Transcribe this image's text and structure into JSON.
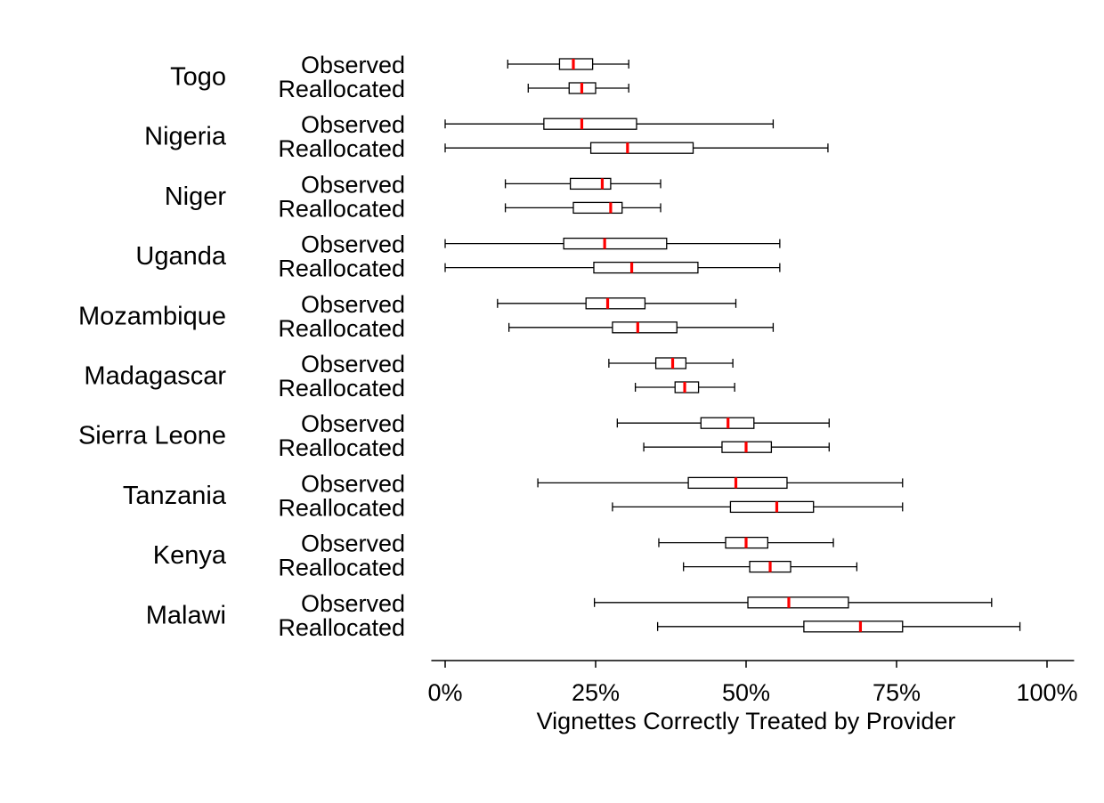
{
  "chart_data": {
    "type": "boxplot",
    "orientation": "horizontal",
    "xlabel": "Vignettes Correctly Treated by Provider",
    "xlim": [
      -0.023,
      1.045
    ],
    "x_ticks": [
      0,
      0.25,
      0.5,
      0.75,
      1.0
    ],
    "x_tick_labels": [
      "0%",
      "25%",
      "50%",
      "75%",
      "100%"
    ],
    "series_labels": [
      "Observed",
      "Reallocated"
    ],
    "median_color": "#ff0000",
    "box_color": "#000000",
    "grid": false,
    "legend": "none",
    "groups": [
      {
        "country": "Togo",
        "boxes": [
          {
            "series": "Observed",
            "whisker_low": 0.104,
            "q1": 0.19,
            "median": 0.213,
            "q3": 0.245,
            "whisker_high": 0.305
          },
          {
            "series": "Reallocated",
            "whisker_low": 0.138,
            "q1": 0.206,
            "median": 0.227,
            "q3": 0.25,
            "whisker_high": 0.305
          }
        ]
      },
      {
        "country": "Nigeria",
        "boxes": [
          {
            "series": "Observed",
            "whisker_low": 0.0,
            "q1": 0.164,
            "median": 0.227,
            "q3": 0.318,
            "whisker_high": 0.545
          },
          {
            "series": "Reallocated",
            "whisker_low": 0.0,
            "q1": 0.242,
            "median": 0.303,
            "q3": 0.412,
            "whisker_high": 0.636
          }
        ]
      },
      {
        "country": "Niger",
        "boxes": [
          {
            "series": "Observed",
            "whisker_low": 0.1,
            "q1": 0.208,
            "median": 0.261,
            "q3": 0.275,
            "whisker_high": 0.358
          },
          {
            "series": "Reallocated",
            "whisker_low": 0.1,
            "q1": 0.213,
            "median": 0.275,
            "q3": 0.294,
            "whisker_high": 0.358
          }
        ]
      },
      {
        "country": "Uganda",
        "boxes": [
          {
            "series": "Observed",
            "whisker_low": 0.0,
            "q1": 0.197,
            "median": 0.265,
            "q3": 0.368,
            "whisker_high": 0.556
          },
          {
            "series": "Reallocated",
            "whisker_low": 0.0,
            "q1": 0.247,
            "median": 0.31,
            "q3": 0.42,
            "whisker_high": 0.556
          }
        ]
      },
      {
        "country": "Mozambique",
        "boxes": [
          {
            "series": "Observed",
            "whisker_low": 0.087,
            "q1": 0.234,
            "median": 0.27,
            "q3": 0.332,
            "whisker_high": 0.483
          },
          {
            "series": "Reallocated",
            "whisker_low": 0.106,
            "q1": 0.278,
            "median": 0.32,
            "q3": 0.385,
            "whisker_high": 0.545
          }
        ]
      },
      {
        "country": "Madagascar",
        "boxes": [
          {
            "series": "Observed",
            "whisker_low": 0.272,
            "q1": 0.35,
            "median": 0.378,
            "q3": 0.4,
            "whisker_high": 0.478
          },
          {
            "series": "Reallocated",
            "whisker_low": 0.316,
            "q1": 0.382,
            "median": 0.398,
            "q3": 0.421,
            "whisker_high": 0.481
          }
        ]
      },
      {
        "country": "Sierra Leone",
        "boxes": [
          {
            "series": "Observed",
            "whisker_low": 0.286,
            "q1": 0.425,
            "median": 0.47,
            "q3": 0.513,
            "whisker_high": 0.638
          },
          {
            "series": "Reallocated",
            "whisker_low": 0.33,
            "q1": 0.46,
            "median": 0.5,
            "q3": 0.542,
            "whisker_high": 0.638
          }
        ]
      },
      {
        "country": "Tanzania",
        "boxes": [
          {
            "series": "Observed",
            "whisker_low": 0.154,
            "q1": 0.404,
            "median": 0.483,
            "q3": 0.568,
            "whisker_high": 0.76
          },
          {
            "series": "Reallocated",
            "whisker_low": 0.278,
            "q1": 0.474,
            "median": 0.551,
            "q3": 0.612,
            "whisker_high": 0.76
          }
        ]
      },
      {
        "country": "Kenya",
        "boxes": [
          {
            "series": "Observed",
            "whisker_low": 0.355,
            "q1": 0.466,
            "median": 0.5,
            "q3": 0.536,
            "whisker_high": 0.645
          },
          {
            "series": "Reallocated",
            "whisker_low": 0.396,
            "q1": 0.506,
            "median": 0.54,
            "q3": 0.574,
            "whisker_high": 0.684
          }
        ]
      },
      {
        "country": "Malawi",
        "boxes": [
          {
            "series": "Observed",
            "whisker_low": 0.248,
            "q1": 0.503,
            "median": 0.571,
            "q3": 0.67,
            "whisker_high": 0.908
          },
          {
            "series": "Reallocated",
            "whisker_low": 0.353,
            "q1": 0.596,
            "median": 0.69,
            "q3": 0.76,
            "whisker_high": 0.955
          }
        ]
      }
    ]
  }
}
